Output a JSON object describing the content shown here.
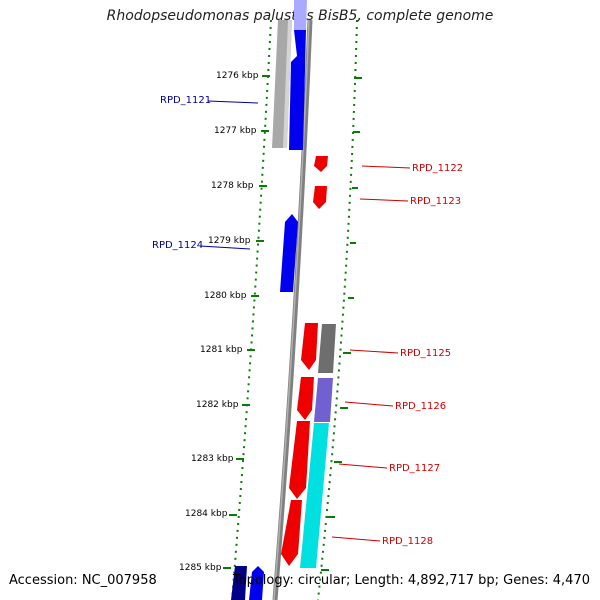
{
  "title": "Rhodopseudomonas palustris BisB5, complete genome",
  "footer": {
    "accession": "Accession: NC_007958",
    "topology": "Topology: circular; Length: 4,892,717 bp; Genes: 4,470"
  },
  "colors": {
    "forward_label": "#d00000",
    "reverse_label": "#000099",
    "tick": "#0a7a0a",
    "backbone": "#808080"
  },
  "kbp_labels": [
    "1276 kbp",
    "1277 kbp",
    "1278 kbp",
    "1279 kbp",
    "1280 kbp",
    "1281 kbp",
    "1282 kbp",
    "1283 kbp",
    "1284 kbp",
    "1285 kbp"
  ],
  "genes": [
    {
      "label": "RPD_1121",
      "strand": "reverse",
      "color": "#0000ee"
    },
    {
      "label": "RPD_1122",
      "strand": "forward",
      "color": "#ee0000"
    },
    {
      "label": "RPD_1123",
      "strand": "forward",
      "color": "#ee0000"
    },
    {
      "label": "RPD_1124",
      "strand": "reverse",
      "color": "#0000ee"
    },
    {
      "label": "RPD_1125",
      "strand": "forward",
      "color": "#ee0000"
    },
    {
      "label": "RPD_1126",
      "strand": "forward",
      "color": "#ee0000"
    },
    {
      "label": "RPD_1127",
      "strand": "forward",
      "color": "#ee0000"
    },
    {
      "label": "RPD_1128",
      "strand": "forward",
      "color": "#ee0000"
    }
  ]
}
